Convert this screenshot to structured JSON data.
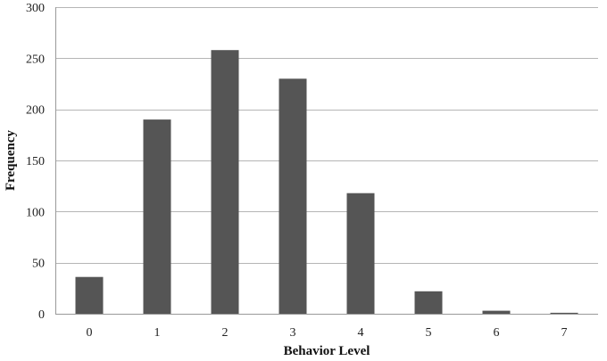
{
  "chart_data": {
    "type": "bar",
    "title": "",
    "xlabel": "Behavior Level",
    "ylabel": "Frequency",
    "categories": [
      "0",
      "1",
      "2",
      "3",
      "4",
      "5",
      "6",
      "7"
    ],
    "values": [
      36,
      190,
      258,
      230,
      118,
      22,
      3,
      1
    ],
    "ylim": [
      0,
      300
    ],
    "yticks": [
      "0",
      "50",
      "100",
      "150",
      "200",
      "250",
      "300"
    ],
    "grid": true,
    "legend": "none",
    "colors": {
      "bar": "#555555",
      "grid": "#b5b5b5",
      "axis": "#999999"
    }
  }
}
